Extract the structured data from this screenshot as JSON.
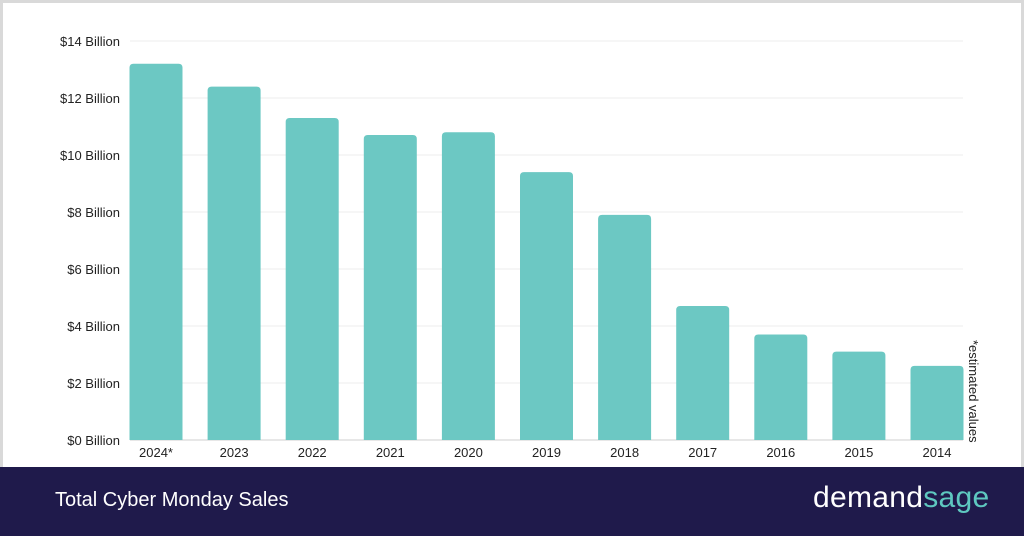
{
  "chart_data": {
    "type": "bar",
    "title": "Total Cyber Monday Sales",
    "categories": [
      "2024*",
      "2023",
      "2022",
      "2021",
      "2020",
      "2019",
      "2018",
      "2017",
      "2016",
      "2015",
      "2014"
    ],
    "values": [
      13.2,
      12.4,
      11.3,
      10.7,
      10.8,
      9.4,
      7.9,
      4.7,
      3.7,
      3.1,
      2.6
    ],
    "unit": "Billion USD",
    "ylim": [
      0,
      14
    ],
    "yticks": [
      0,
      2,
      4,
      6,
      8,
      10,
      12,
      14
    ],
    "ytick_labels": [
      "$0 Billion",
      "$2 Billion",
      "$4 Billion",
      "$6 Billion",
      "$8 Billion",
      "$10 Billion",
      "$12 Billion",
      "$14 Billion"
    ],
    "grid": true,
    "annotation": "*estimated values",
    "bar_color": "#6cc8c3"
  },
  "footer": {
    "title": "Total Cyber Monday Sales",
    "brand_a": "demand",
    "brand_b": "sage"
  }
}
